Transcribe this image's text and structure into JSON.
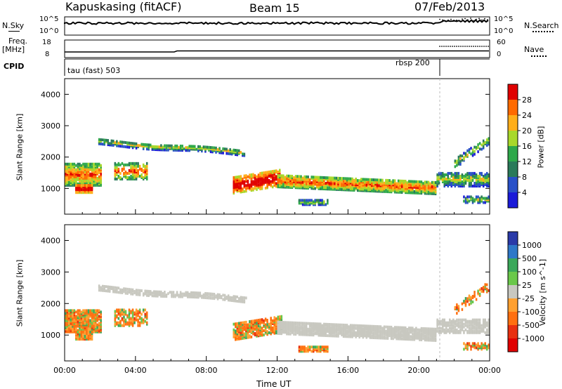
{
  "header": {
    "station": "Kapuskasing (fitACF)",
    "beam": "Beam 15",
    "date": "07/Feb/2013"
  },
  "strip": {
    "nsky_label": "N.Sky",
    "nsky_ticks": [
      "10^5",
      "10^0"
    ],
    "nsearch_label": "N.Search",
    "nsearch_ticks": [
      "10^5",
      "10^0"
    ],
    "freq_label_1": "Freq.",
    "freq_label_2": "[MHz]",
    "freq_ticks": [
      "18",
      "8"
    ],
    "nave_label": "Nave",
    "nave_ticks": [
      "60",
      "0"
    ],
    "cpid_label": "CPID",
    "cpid_segments": [
      {
        "label": "tau (fast) 503",
        "start_hour": 0.0
      },
      {
        "label": "rbsp 200",
        "start_hour": 21.2
      }
    ]
  },
  "chart_data": [
    {
      "type": "heatmap",
      "title": "",
      "xlabel": "",
      "ylabel": "Slant Range [km]",
      "x_ticks": [
        "00:00",
        "04:00",
        "08:00",
        "12:00",
        "16:00",
        "20:00",
        "00:00"
      ],
      "xlim_hours": [
        0,
        24
      ],
      "ylim": [
        180,
        4500
      ],
      "y_ticks": [
        1000,
        2000,
        3000,
        4000
      ],
      "colorbar_label": "Power [dB]",
      "colorbar_ticks": [
        "28",
        "24",
        "20",
        "16",
        "12",
        "8",
        "4"
      ],
      "colorbar_colors": [
        "#e00000",
        "#ff6a00",
        "#ffae1a",
        "#a8d82a",
        "#2ea84a",
        "#2a7a5a",
        "#2850c8",
        "#1a1ad8"
      ]
    },
    {
      "type": "heatmap",
      "title": "",
      "xlabel": "Time UT",
      "ylabel": "Slant Range [km]",
      "x_ticks": [
        "00:00",
        "04:00",
        "08:00",
        "12:00",
        "16:00",
        "20:00",
        "00:00"
      ],
      "xlim_hours": [
        0,
        24
      ],
      "ylim": [
        180,
        4500
      ],
      "y_ticks": [
        1000,
        2000,
        3000,
        4000
      ],
      "colorbar_label": "Velocity [m s^-1]",
      "colorbar_ticks": [
        "1000",
        "500",
        "100",
        "25",
        "-25",
        "-100",
        "-500",
        "-1000"
      ],
      "colorbar_colors": [
        "#2a3aa8",
        "#2e78c8",
        "#3aa85a",
        "#6ac84a",
        "#c8c8c0",
        "#ffa030",
        "#ff7010",
        "#e83010",
        "#e00000"
      ],
      "ground_scatter_color": "#c8c8c0"
    }
  ]
}
